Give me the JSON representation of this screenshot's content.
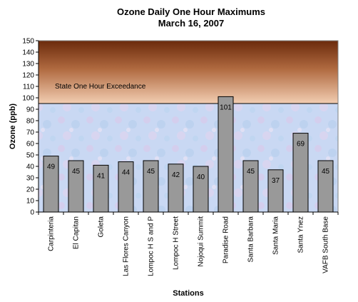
{
  "chart_data": {
    "type": "bar",
    "title": "Ozone Daily One Hour Maximums",
    "subtitle": "March 16, 2007",
    "xlabel": "Stations",
    "ylabel": "Ozone (ppb)",
    "ylim": [
      0,
      150
    ],
    "y_ticks": [
      "0",
      "10",
      "20",
      "30",
      "40",
      "50",
      "60",
      "70",
      "80",
      "90",
      "100",
      "110",
      "120",
      "130",
      "140",
      "150"
    ],
    "grid": false,
    "categories": [
      "Carpinteria",
      "El Capitan",
      "Goleta",
      "Las Flores Canyon",
      "Lompoc H S and P",
      "Lompoc H Street",
      "Nojoqui Summit",
      "Paradise Road",
      "Santa Barbara",
      "Santa Maria",
      "Santa Ynez",
      "VAFB South Base"
    ],
    "values": [
      49,
      45,
      41,
      44,
      45,
      42,
      40,
      101,
      45,
      37,
      69,
      45
    ],
    "data_labels": [
      "49",
      "45",
      "41",
      "44",
      "45",
      "42",
      "40",
      "101",
      "45",
      "37",
      "69",
      "45"
    ],
    "threshold": {
      "value": 95,
      "label": "State One Hour Exceedance"
    },
    "colors": {
      "bar": "#999999",
      "band_top": "#6b2a0c",
      "band_bottom": "#efc6a8",
      "plot_bg": "#c8d8f2"
    }
  }
}
